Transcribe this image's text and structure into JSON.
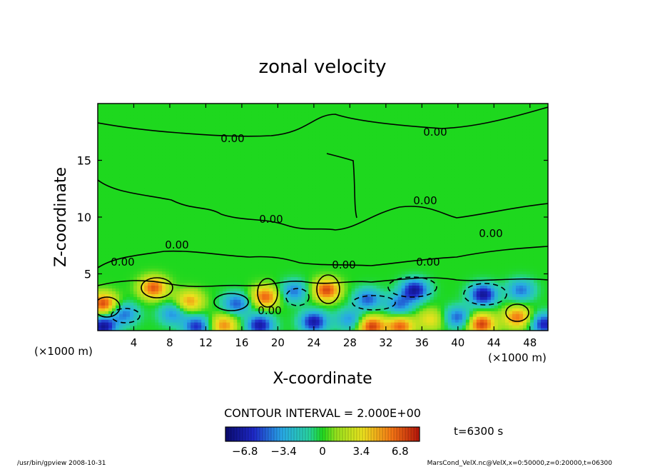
{
  "chart_data": {
    "type": "heatmap",
    "title": "zonal velocity",
    "xlabel": "X-coordinate",
    "ylabel": "Z-coordinate",
    "x_units": "(×1000 m)",
    "y_units": "(×1000 m)",
    "xlim": [
      0,
      50
    ],
    "ylim": [
      0,
      20
    ],
    "x_ticks": [
      4,
      8,
      12,
      16,
      20,
      24,
      28,
      32,
      36,
      40,
      44,
      48
    ],
    "y_ticks": [
      5,
      10,
      15
    ],
    "contour_interval_text": "CONTOUR INTERVAL = 2.000E+00",
    "contour_labels": [
      "0.00",
      "0.00",
      "0.00",
      "0.00",
      "0.00",
      "0.00",
      "0.00",
      "0.00",
      "0.00",
      "0.00"
    ],
    "colorbar": {
      "range": [
        -8.5,
        8.5
      ],
      "ticks": [
        -6.8,
        -3.4,
        0,
        3.4,
        6.8
      ],
      "tick_labels": [
        "−6.8",
        "−3.4",
        "0",
        "3.4",
        "6.8"
      ]
    },
    "time_label": "t=6300 s",
    "colors": {
      "negative": "#0a1c9c",
      "zero": "#1ed81e",
      "positive": "#d8200a"
    },
    "extrema_cells": [
      {
        "x": 0.6,
        "z": 0.4,
        "value": -7.5
      },
      {
        "x": 0.6,
        "z": 2.4,
        "value": 7.2
      },
      {
        "x": 3.0,
        "z": 1.5,
        "value": -4.5
      },
      {
        "x": 6.2,
        "z": 3.8,
        "value": 6.8
      },
      {
        "x": 8.3,
        "z": 1.5,
        "value": -4.0
      },
      {
        "x": 10.2,
        "z": 2.6,
        "value": 5.0
      },
      {
        "x": 11.0,
        "z": 0.4,
        "value": -6.0
      },
      {
        "x": 14.0,
        "z": 0.5,
        "value": 5.5
      },
      {
        "x": 15.4,
        "z": 2.4,
        "value": -5.0
      },
      {
        "x": 18.6,
        "z": 3.0,
        "value": 6.5
      },
      {
        "x": 18.0,
        "z": 0.5,
        "value": -7.0
      },
      {
        "x": 21.8,
        "z": 3.5,
        "value": -4.5
      },
      {
        "x": 25.4,
        "z": 3.6,
        "value": 7.2
      },
      {
        "x": 24.0,
        "z": 0.8,
        "value": -7.0
      },
      {
        "x": 28.0,
        "z": 1.0,
        "value": -4.0
      },
      {
        "x": 30.0,
        "z": 2.8,
        "value": -5.0
      },
      {
        "x": 30.4,
        "z": 0.4,
        "value": 7.5
      },
      {
        "x": 33.6,
        "z": 0.4,
        "value": 6.5
      },
      {
        "x": 35.2,
        "z": 3.6,
        "value": -7.2
      },
      {
        "x": 33.5,
        "z": 2.3,
        "value": -4.5
      },
      {
        "x": 37.0,
        "z": 1.0,
        "value": 3.5
      },
      {
        "x": 40.0,
        "z": 1.2,
        "value": -5.0
      },
      {
        "x": 42.8,
        "z": 3.2,
        "value": -7.4
      },
      {
        "x": 42.6,
        "z": 0.6,
        "value": 7.5
      },
      {
        "x": 46.6,
        "z": 1.2,
        "value": 6.0
      },
      {
        "x": 47.0,
        "z": 3.6,
        "value": -4.5
      },
      {
        "x": 49.6,
        "z": 0.6,
        "value": -6.5
      }
    ]
  },
  "footer": {
    "left": "/usr/bin/gpview  2008-10-31",
    "right": "MarsCond_VelX.nc@VelX,x=0:50000,z=0:20000,t=06300"
  }
}
